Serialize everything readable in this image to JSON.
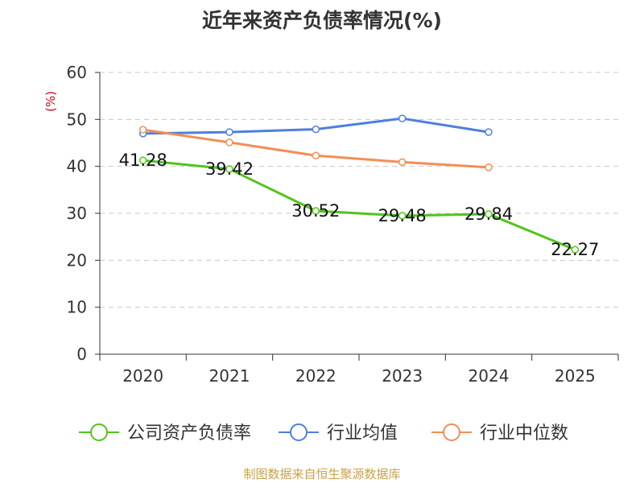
{
  "title": "近年来资产负债率情况(%)",
  "source_note": "制图数据来自恒生聚源数据库",
  "chart_data": {
    "type": "line",
    "title": "近年来资产负债率情况(%)",
    "ylabel": "(%)",
    "xlabel": "",
    "categories": [
      "2020",
      "2021",
      "2022",
      "2023",
      "2024",
      "2025"
    ],
    "ylim": [
      0,
      60
    ],
    "yticks": [
      0,
      10,
      20,
      30,
      40,
      50,
      60
    ],
    "grid": true,
    "legend_position": "bottom",
    "series": [
      {
        "name": "公司资产负债率",
        "color": "#52c41a",
        "show_labels": true,
        "values": [
          41.28,
          39.42,
          30.52,
          29.48,
          29.84,
          22.27
        ],
        "labels": [
          "41.28",
          "39.42",
          "30.52",
          "29.48",
          "29.84",
          "22.27"
        ]
      },
      {
        "name": "行业均值",
        "color": "#4f7fdb",
        "show_labels": false,
        "values": [
          47.0,
          47.3,
          47.9,
          50.2,
          47.3,
          null
        ]
      },
      {
        "name": "行业中位数",
        "color": "#f28e57",
        "show_labels": false,
        "values": [
          47.8,
          45.1,
          42.3,
          40.9,
          39.8,
          null
        ]
      }
    ]
  }
}
